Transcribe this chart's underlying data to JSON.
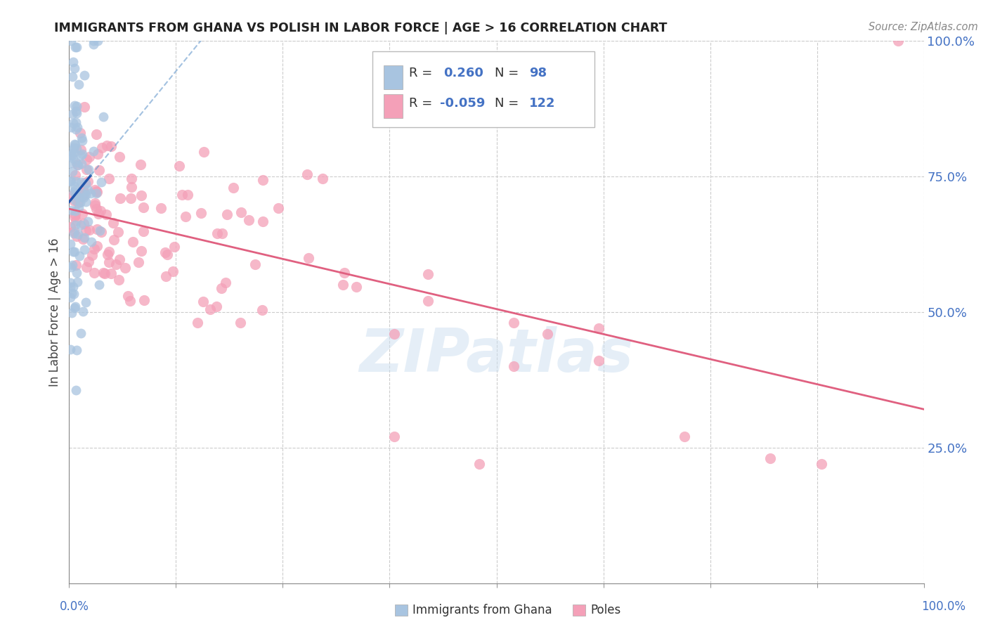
{
  "title": "IMMIGRANTS FROM GHANA VS POLISH IN LABOR FORCE | AGE > 16 CORRELATION CHART",
  "source": "Source: ZipAtlas.com",
  "ylabel": "In Labor Force | Age > 16",
  "right_yticks": [
    "100.0%",
    "75.0%",
    "50.0%",
    "25.0%"
  ],
  "right_ytick_vals": [
    1.0,
    0.75,
    0.5,
    0.25
  ],
  "ghana_R": 0.26,
  "ghana_N": 98,
  "poles_R": -0.059,
  "poles_N": 122,
  "ghana_color": "#a8c4e0",
  "ghana_line_color": "#2255aa",
  "ghana_dash_color": "#6699cc",
  "poles_color": "#f4a0b8",
  "poles_line_color": "#e06080",
  "watermark": "ZIPatlas",
  "background_color": "#ffffff",
  "grid_color": "#cccccc"
}
